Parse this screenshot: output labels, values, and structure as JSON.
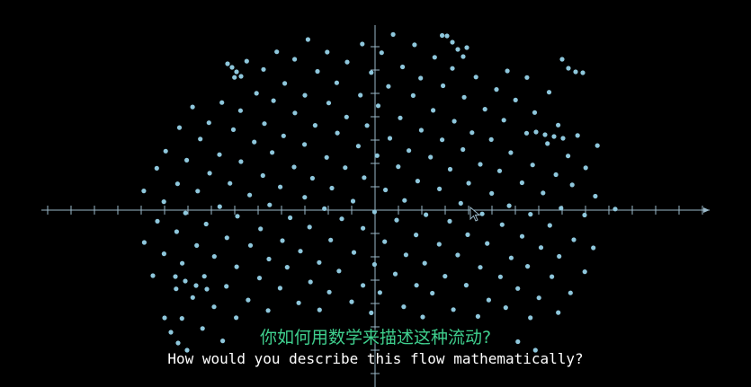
{
  "subtitles": {
    "chinese": "你如何用数学来描述这种流动?",
    "english": "How would you describe this flow mathematically?"
  },
  "colors": {
    "background": "#000000",
    "axis": "#9ab8c8",
    "particle": "#8ec7dc",
    "subtitle_chinese": "#3fcf8e",
    "subtitle_english": "#ffffff"
  },
  "cursor_icon": "arrow-cursor-icon"
}
